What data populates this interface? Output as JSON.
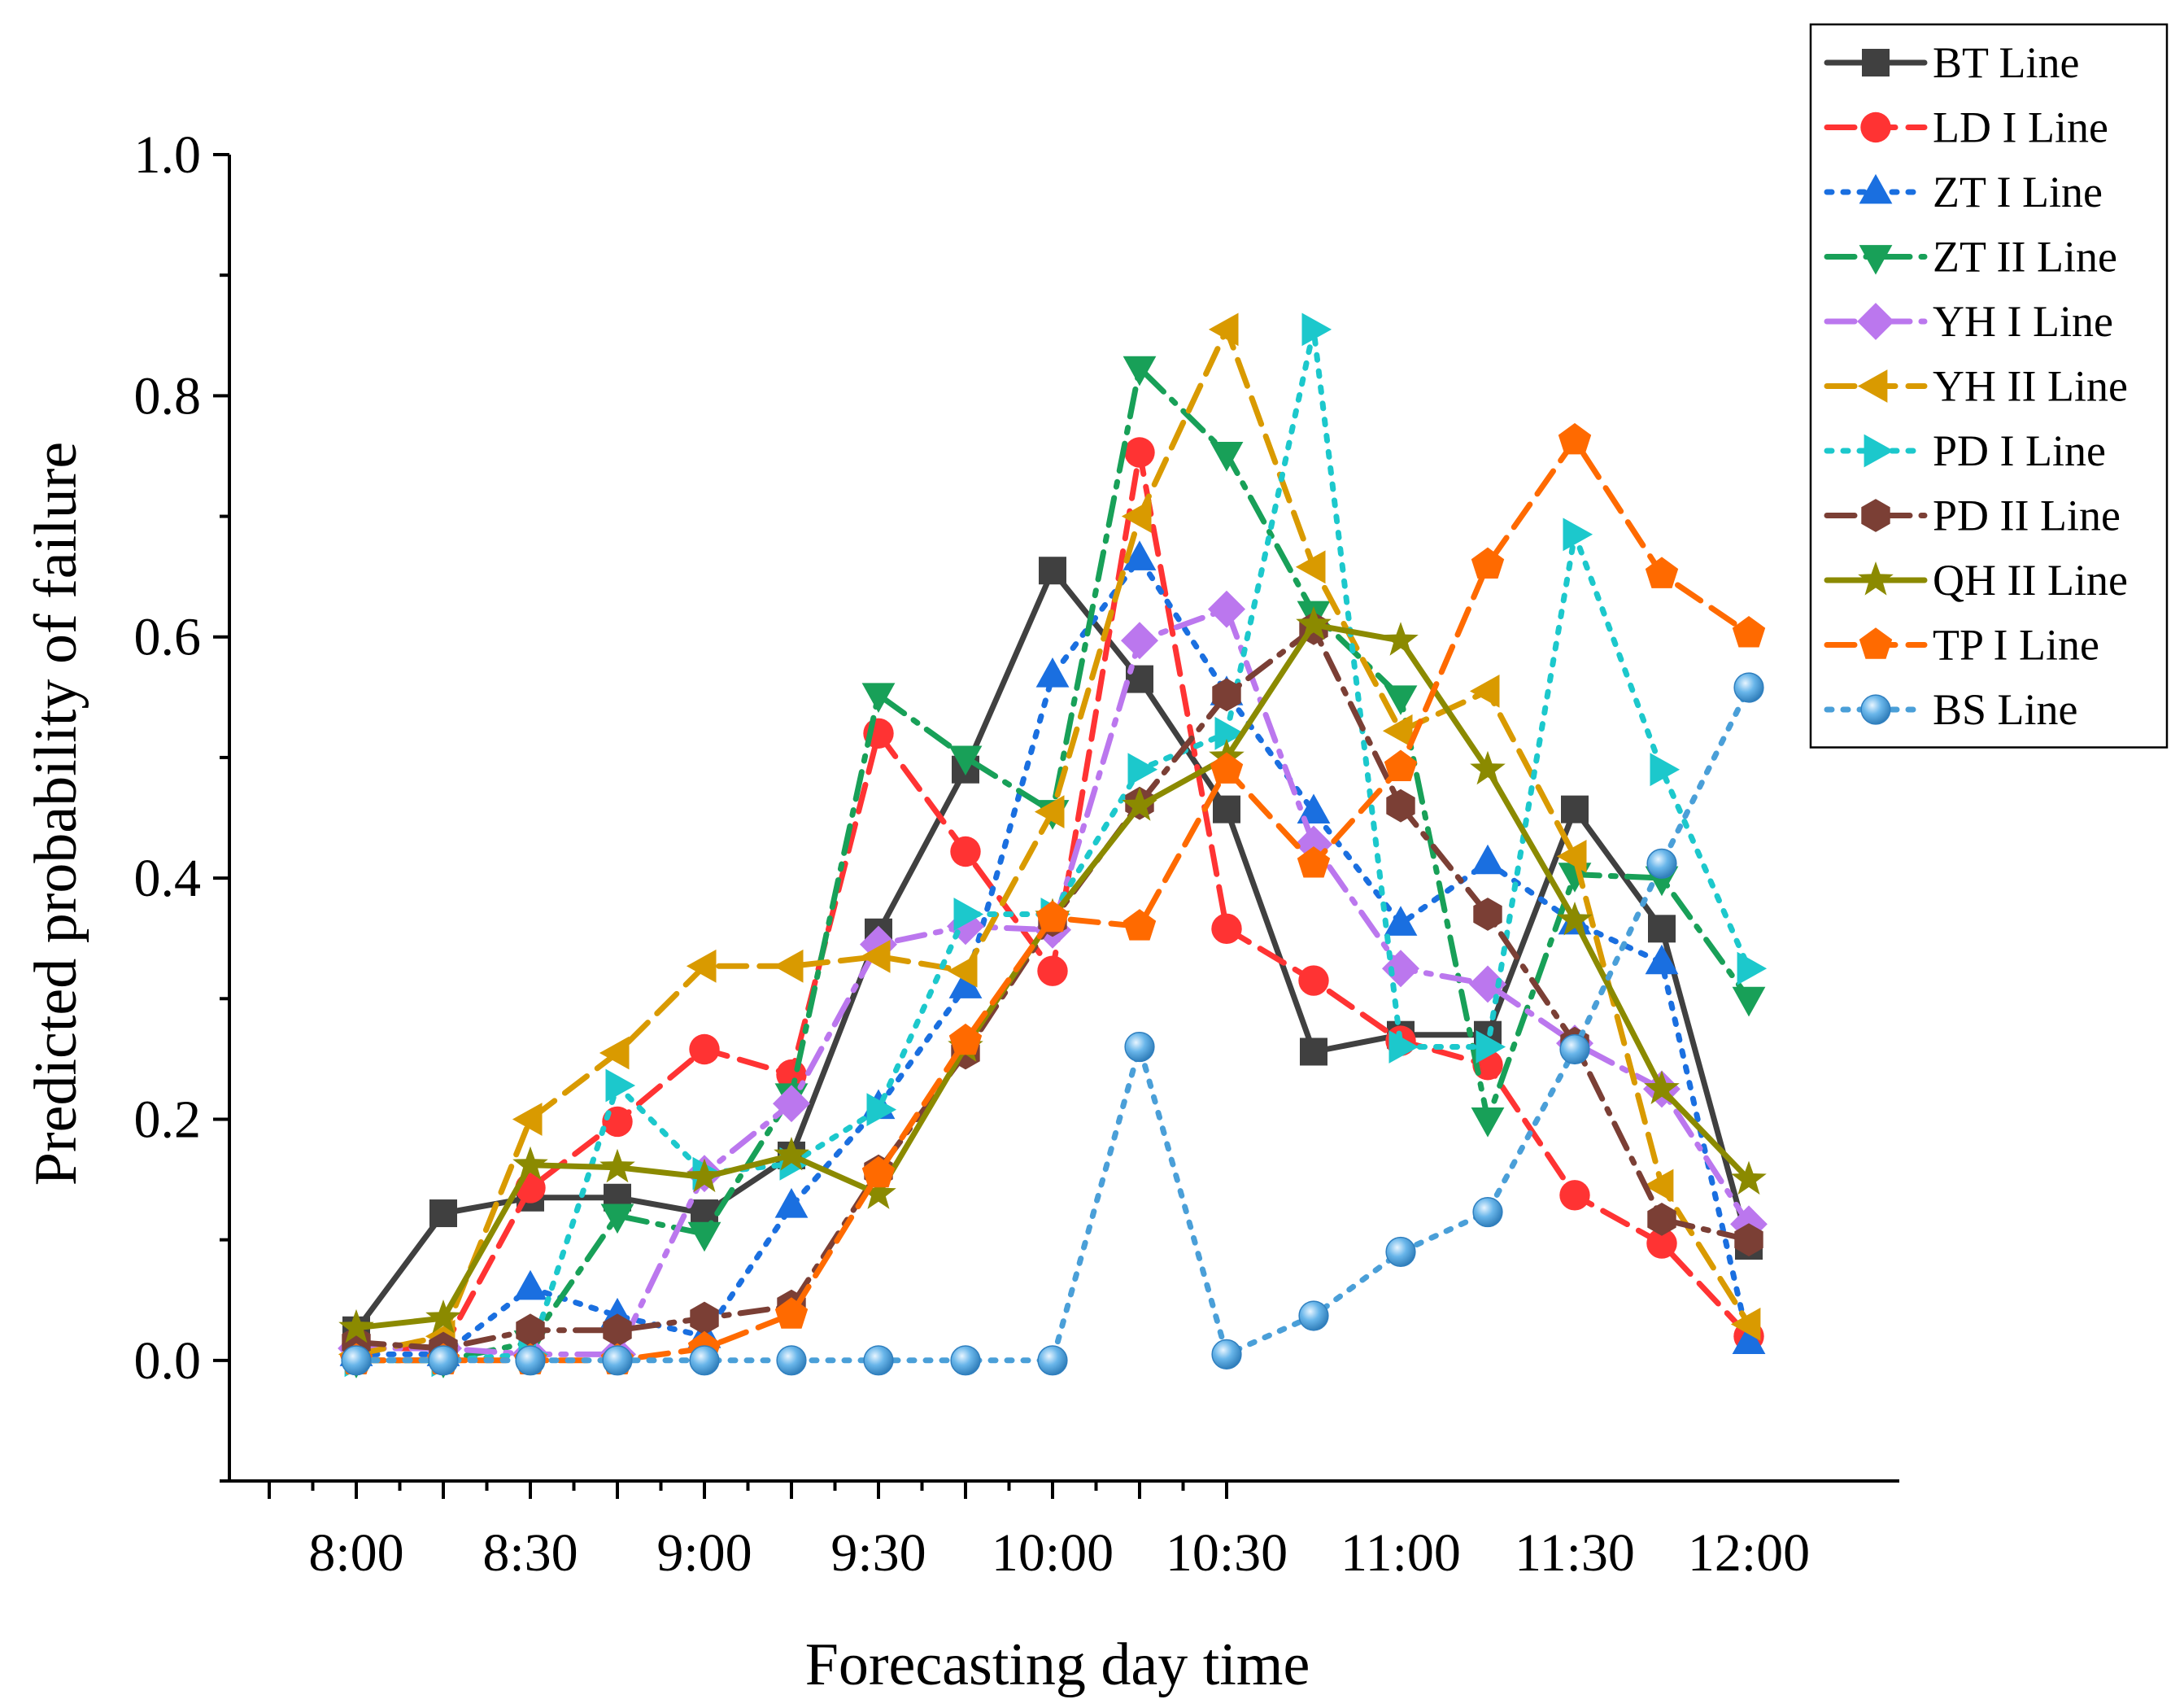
{
  "chart_data": {
    "type": "line",
    "title": "",
    "xlabel": "Forecasting day time",
    "ylabel": "Predicted probability of failure",
    "ylim": [
      -0.1,
      1.0
    ],
    "y_ticks": [
      "0.0",
      "0.2",
      "0.4",
      "0.6",
      "0.8",
      "1.0"
    ],
    "y_tick_values": [
      0.0,
      0.2,
      0.4,
      0.6,
      0.8,
      1.0
    ],
    "x_tick_labels": [
      "8:00",
      "8:30",
      "9:00",
      "9:30",
      "10:00",
      "10:30",
      "11:00",
      "11:30",
      "12:00"
    ],
    "x": [
      "8:00",
      "8:15",
      "8:30",
      "8:45",
      "9:00",
      "9:15",
      "9:30",
      "9:45",
      "10:00",
      "10:15",
      "10:30",
      "10:45",
      "11:00",
      "11:15",
      "11:30",
      "11:45",
      "12:00"
    ],
    "legend_position": "top-right",
    "series": [
      {
        "name": "BT Line",
        "color": "#404040",
        "marker": "square",
        "dash": "solid",
        "values": [
          0.025,
          0.122,
          0.135,
          0.135,
          0.122,
          0.17,
          0.355,
          0.49,
          0.655,
          0.565,
          0.457,
          0.256,
          0.27,
          0.27,
          0.457,
          0.358,
          0.095
        ]
      },
      {
        "name": "LD I Line",
        "color": "#ff3333",
        "marker": "circle",
        "dash": "dash",
        "values": [
          0.01,
          0.01,
          0.143,
          0.198,
          0.258,
          0.237,
          0.52,
          0.422,
          0.323,
          0.753,
          0.358,
          0.315,
          0.265,
          0.245,
          0.137,
          0.097,
          0.02
        ]
      },
      {
        "name": "ZT I Line",
        "color": "#1a6fe0",
        "marker": "triangle-up",
        "dash": "dot",
        "values": [
          0.005,
          0.005,
          0.06,
          0.037,
          0.02,
          0.128,
          0.21,
          0.31,
          0.568,
          0.665,
          0.553,
          0.455,
          0.362,
          0.413,
          0.363,
          0.33,
          0.015
        ]
      },
      {
        "name": "ZT II Line",
        "color": "#18a058",
        "marker": "triangle-down",
        "dash": "dashdot",
        "values": [
          0.0,
          0.0,
          0.015,
          0.12,
          0.105,
          0.22,
          0.552,
          0.5,
          0.455,
          0.823,
          0.752,
          0.62,
          0.55,
          0.2,
          0.403,
          0.4,
          0.3
        ]
      },
      {
        "name": "YH I Line",
        "color": "#bb77ee",
        "marker": "diamond",
        "dash": "dashdot",
        "values": [
          0.01,
          0.01,
          0.005,
          0.005,
          0.155,
          0.213,
          0.345,
          0.36,
          0.357,
          0.597,
          0.623,
          0.428,
          0.325,
          0.312,
          0.263,
          0.225,
          0.113
        ]
      },
      {
        "name": "YH II Line",
        "color": "#d99a00",
        "marker": "triangle-left",
        "dash": "dash",
        "values": [
          0.005,
          0.02,
          0.2,
          0.255,
          0.327,
          0.327,
          0.335,
          0.323,
          0.455,
          0.7,
          0.855,
          0.658,
          0.522,
          0.555,
          0.418,
          0.145,
          0.03
        ]
      },
      {
        "name": "PD I Line",
        "color": "#1cc8cc",
        "marker": "triangle-right",
        "dash": "dot",
        "values": [
          0.0,
          0.0,
          0.005,
          0.228,
          0.155,
          0.163,
          0.208,
          0.37,
          0.37,
          0.49,
          0.52,
          0.855,
          0.26,
          0.26,
          0.685,
          0.49,
          0.325
        ]
      },
      {
        "name": "PD II Line",
        "color": "#7b3f35",
        "marker": "hexagon",
        "dash": "dashdot",
        "values": [
          0.015,
          0.01,
          0.025,
          0.025,
          0.035,
          0.045,
          0.157,
          0.255,
          0.365,
          0.462,
          0.552,
          0.607,
          0.46,
          0.37,
          0.263,
          0.117,
          0.1
        ]
      },
      {
        "name": "QH II Line",
        "color": "#8b8a00",
        "marker": "star",
        "dash": "solid",
        "values": [
          0.027,
          0.035,
          0.162,
          0.16,
          0.152,
          0.17,
          0.138,
          0.26,
          0.368,
          0.46,
          0.5,
          0.61,
          0.597,
          0.49,
          0.365,
          0.225,
          0.15
        ]
      },
      {
        "name": "TP I Line",
        "color": "#ff6a00",
        "marker": "pentagon",
        "dash": "dash",
        "values": [
          0.0,
          0.0,
          0.0,
          0.0,
          0.01,
          0.038,
          0.155,
          0.265,
          0.367,
          0.36,
          0.49,
          0.412,
          0.492,
          0.66,
          0.763,
          0.652,
          0.603
        ]
      },
      {
        "name": "BS Line",
        "color": "#4a9fd8",
        "marker": "ball",
        "dash": "dot",
        "values": [
          0.0,
          0.0,
          0.0,
          0.0,
          0.0,
          0.0,
          0.0,
          0.0,
          0.0,
          0.26,
          0.005,
          0.037,
          0.09,
          0.123,
          0.258,
          0.412,
          0.558
        ]
      }
    ]
  }
}
